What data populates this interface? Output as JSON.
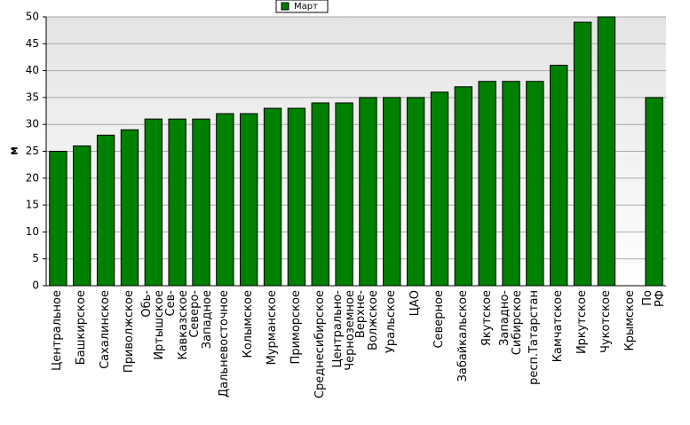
{
  "chart_data": {
    "type": "bar",
    "legend": "Март",
    "y_label": "м",
    "categories": [
      "Центральное",
      "Башкирское",
      "Сахалинское",
      "Приволжское",
      "Обь-\nИртышское",
      "Сев-\nКавказское",
      "Северо-\nЗападное",
      "Дальневосточное",
      "Колымское",
      "Мурманское",
      "Приморское",
      "Среднесибирское",
      "Центрально-\nЧерноземное",
      "Верхне-\nВолжское",
      "Уральское",
      "ЦАО",
      "Северное",
      "Забайкальское",
      "Якутское",
      "Западно-\nСибирское",
      "респ.Татарстан",
      "Камчатское",
      "Иркутское",
      "Чукотское",
      "Крымское",
      "По РФ"
    ],
    "values": [
      25,
      26,
      28,
      29,
      31,
      31,
      31,
      32,
      32,
      33,
      33,
      34,
      34,
      35,
      35,
      35,
      36,
      37,
      38,
      38,
      38,
      41,
      49,
      50,
      null,
      35
    ],
    "color": "#008000",
    "ylim": [
      0,
      50
    ],
    "yticks": [
      0,
      5,
      10,
      15,
      20,
      25,
      30,
      35,
      40,
      45,
      50
    ],
    "grid": true
  }
}
